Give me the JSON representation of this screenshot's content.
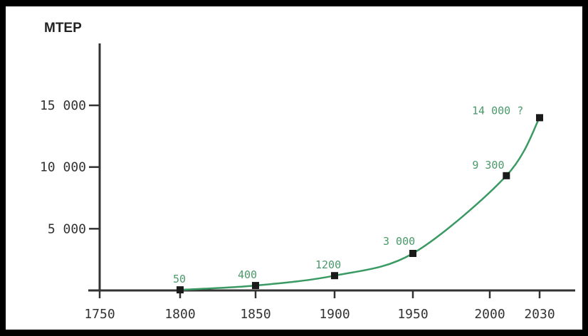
{
  "chart_data": {
    "type": "line",
    "title": "",
    "ylabel": "MTEP",
    "xlabel": "",
    "x": [
      1800,
      1850,
      1900,
      1950,
      2010,
      2030
    ],
    "series": [
      {
        "values": [
          50,
          400,
          1200,
          3000,
          9300,
          14000
        ]
      }
    ],
    "data_labels": [
      "50",
      "400",
      "1200",
      "3 000",
      "9 300",
      "14 000 ?"
    ],
    "xticks": [
      1750,
      1800,
      1850,
      1900,
      1950,
      2000,
      2030
    ],
    "xtick_labels": [
      "1750",
      "1800",
      "1850",
      "1900",
      "1950",
      "2000",
      "2030"
    ],
    "yticks": [
      5000,
      10000,
      15000
    ],
    "ytick_labels": [
      "5 000",
      "10 000",
      "15 000"
    ],
    "xlim": [
      1750,
      2030
    ],
    "ylim": [
      0,
      18000
    ],
    "grid": false,
    "legend": "none",
    "colors": {
      "line": "#3a9a63",
      "marker": "#1a1a1a",
      "label": "#4a9a6a",
      "axis": "#333333"
    }
  }
}
